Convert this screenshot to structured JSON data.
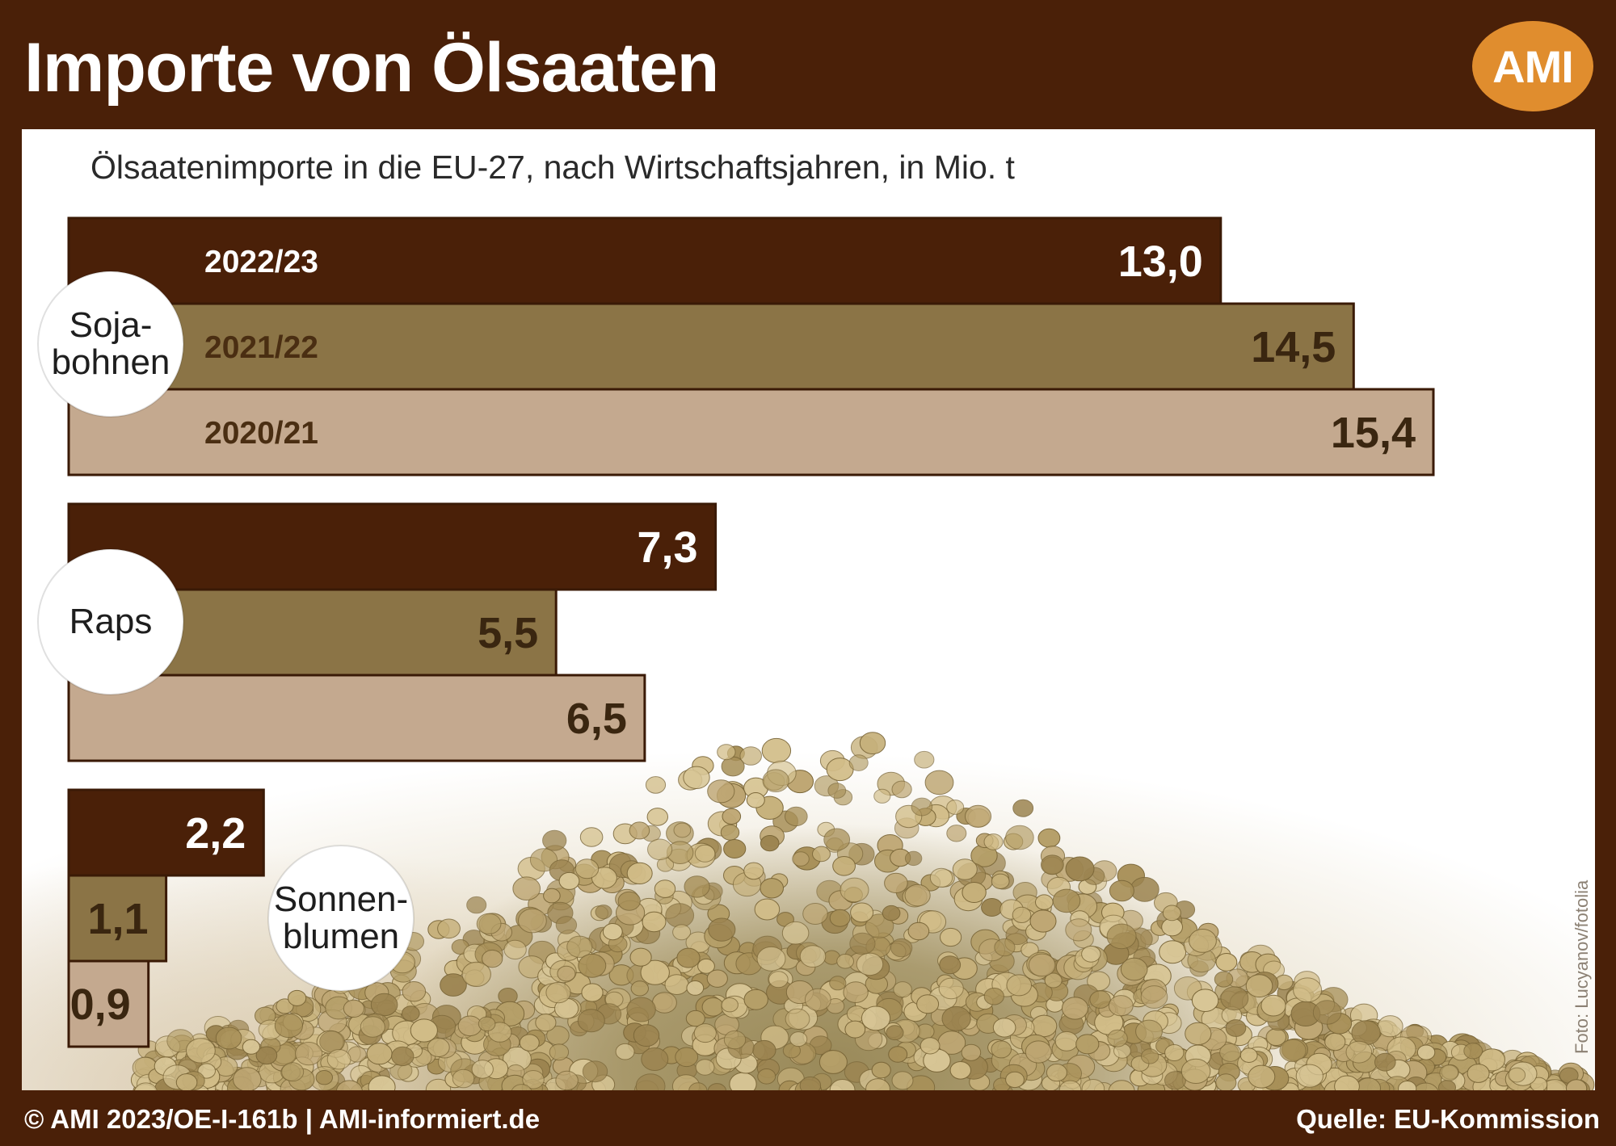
{
  "header": {
    "title": "Importe von Ölsaaten",
    "logo_text": "AMI"
  },
  "subtitle": "Ölsaatenimporte in die EU-27, nach Wirtschaftsjahren, in Mio. t",
  "photo_credit": "Foto: Lucyanov/fotolia",
  "footer": {
    "left": "© AMI 2023/OE-I-161b | AMI-informiert.de",
    "right": "Quelle: EU-Kommission"
  },
  "colors": {
    "background": "#4a2008",
    "logo": "#e08d2e",
    "series_2022_23": "#4a2008",
    "series_2021_22": "#8b7446",
    "series_2020_21": "#c4a98f"
  },
  "chart_data": {
    "type": "bar",
    "orientation": "horizontal",
    "categories": [
      "Soja-\nbohnen",
      "Raps",
      "Sonnen-\nblumen"
    ],
    "series": [
      {
        "name": "2022/23",
        "values": [
          13.0,
          7.3,
          2.2
        ],
        "labels": [
          "13,0",
          "7,3",
          "2,2"
        ],
        "color": "#4a2008",
        "label_color": "#ffffff"
      },
      {
        "name": "2021/22",
        "values": [
          14.5,
          5.5,
          1.1
        ],
        "labels": [
          "14,5",
          "5,5",
          "1,1"
        ],
        "color": "#8b7446",
        "label_color": "#3a2610"
      },
      {
        "name": "2020/21",
        "values": [
          15.4,
          6.5,
          0.9
        ],
        "labels": [
          "15,4",
          "6,5",
          "0,9"
        ],
        "color": "#c4a98f",
        "label_color": "#3a2610"
      }
    ],
    "grid": false,
    "legend": "inline on first category bars"
  }
}
